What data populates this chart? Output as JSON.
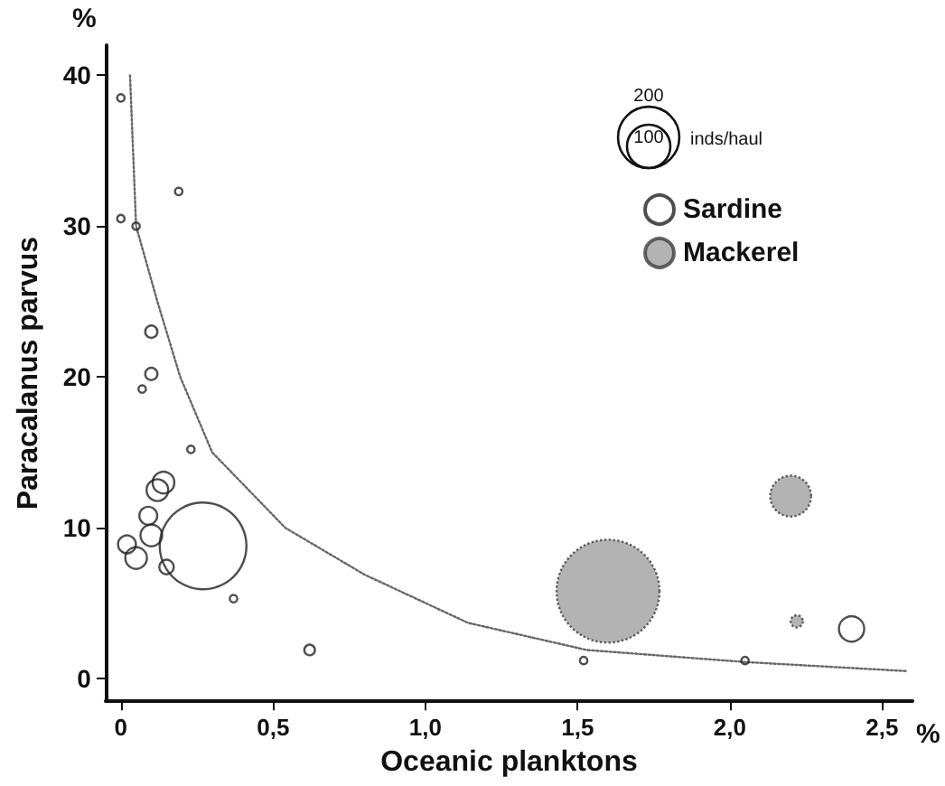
{
  "chart_data": {
    "type": "bubble",
    "xlabel": "Oceanic planktons",
    "ylabel": "Paracalanus parvus",
    "legend_title": "inds/haul",
    "size_legend": [
      100,
      200
    ],
    "annotations": [
      "%",
      "%"
    ],
    "xlim": [
      -0.05,
      2.6
    ],
    "xticks": [
      0,
      {
        "value": 0.5,
        "label": "0,5"
      },
      {
        "value": 1,
        "label": "1,0"
      },
      {
        "value": 1.5,
        "label": "1,5"
      },
      {
        "value": 2,
        "label": "2,0"
      },
      {
        "value": 2.5,
        "label": "2,5"
      }
    ],
    "ylim": [
      -1.5,
      42
    ],
    "yticks": [
      0,
      10,
      20,
      30,
      40
    ],
    "grid": false,
    "legend": "top right",
    "marker": "circle",
    "series": [
      {
        "name": "Sardine",
        "color": "#222222",
        "x": [
          0.0,
          0.0,
          0.05,
          0.19,
          0.07,
          0.1,
          0.1,
          0.23,
          0.14,
          0.12,
          0.09,
          0.1,
          0.02,
          0.05,
          0.15,
          0.27,
          0.37,
          0.62,
          2.4,
          1.52,
          2.05
        ],
        "values": [
          38.5,
          30.5,
          30,
          32.3,
          19.2,
          23,
          20.2,
          15.2,
          13,
          12.5,
          10.8,
          9.5,
          8.9,
          8,
          7.4,
          8.8,
          5.3,
          1.9,
          3.3,
          1.2,
          1.2
        ],
        "sizes": [
          3,
          3,
          3,
          3,
          3,
          8,
          8,
          3,
          25,
          25,
          17,
          25,
          17,
          25,
          11,
          400,
          3,
          6,
          34,
          3,
          3
        ]
      },
      {
        "name": "Mackerel",
        "color": "#9a9a9a",
        "x": [
          1.6,
          2.2,
          2.22
        ],
        "values": [
          5.8,
          12.1,
          3.8
        ],
        "sizes": [
          564,
          89,
          8
        ]
      },
      {
        "type": "line",
        "color": "#666666",
        "line_style": "dotted",
        "marker": "none",
        "x": [
          0.03,
          0.05,
          0.12,
          0.195,
          0.3,
          0.54,
          0.8,
          1.14,
          1.53,
          2.05,
          2.58
        ],
        "values": [
          40,
          30,
          25,
          20,
          15,
          10,
          6.9,
          3.7,
          1.9,
          1.1,
          0.5
        ]
      }
    ]
  }
}
